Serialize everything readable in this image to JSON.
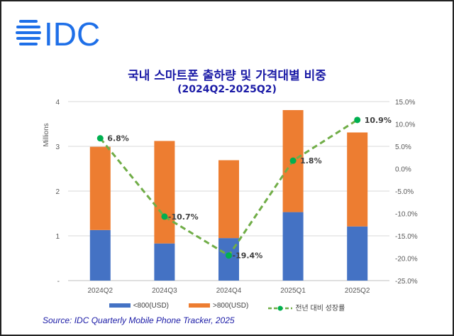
{
  "logo_text": "IDC",
  "colors": {
    "below_800": "#4472c4",
    "above_800": "#ed7d31",
    "growth": "#70ad47",
    "growth_marker": "#00b050",
    "title": "#1a1aa6"
  },
  "chart_data": {
    "type": "bar",
    "title": "국내 스마트폰 출하량 및 가격대별 비중",
    "subtitle": "(2024Q2-2025Q2)",
    "ylabel": "Millions",
    "ylim": [
      0,
      4
    ],
    "y_ticks": [
      "-",
      "1",
      "2",
      "3",
      "4"
    ],
    "y2lim": [
      -25,
      15
    ],
    "y2_ticks": [
      "-25.0%",
      "-20.0%",
      "-15.0%",
      "-10.0%",
      "-5.0%",
      "0.0%",
      "5.0%",
      "10.0%",
      "15.0%"
    ],
    "categories": [
      "2024Q2",
      "2024Q3",
      "2024Q4",
      "2025Q1",
      "2025Q2"
    ],
    "stacked": true,
    "grid": true,
    "legend_position": "bottom",
    "series": [
      {
        "name": "<800(USD)",
        "type": "bar",
        "values": [
          1.13,
          0.83,
          0.95,
          1.53,
          1.21
        ]
      },
      {
        "name": ">800(USD)",
        "type": "bar",
        "values": [
          1.86,
          2.29,
          1.74,
          2.28,
          2.1
        ]
      },
      {
        "name": "전년 대비 성장률",
        "type": "line",
        "axis": "right",
        "values": [
          6.8,
          -10.7,
          -19.4,
          1.8,
          10.9
        ],
        "labels": [
          "6.8%",
          "-10.7%",
          "-19.4%",
          "1.8%",
          "10.9%"
        ]
      }
    ]
  },
  "source": "Source: IDC Quarterly Mobile Phone Tracker, 2025"
}
